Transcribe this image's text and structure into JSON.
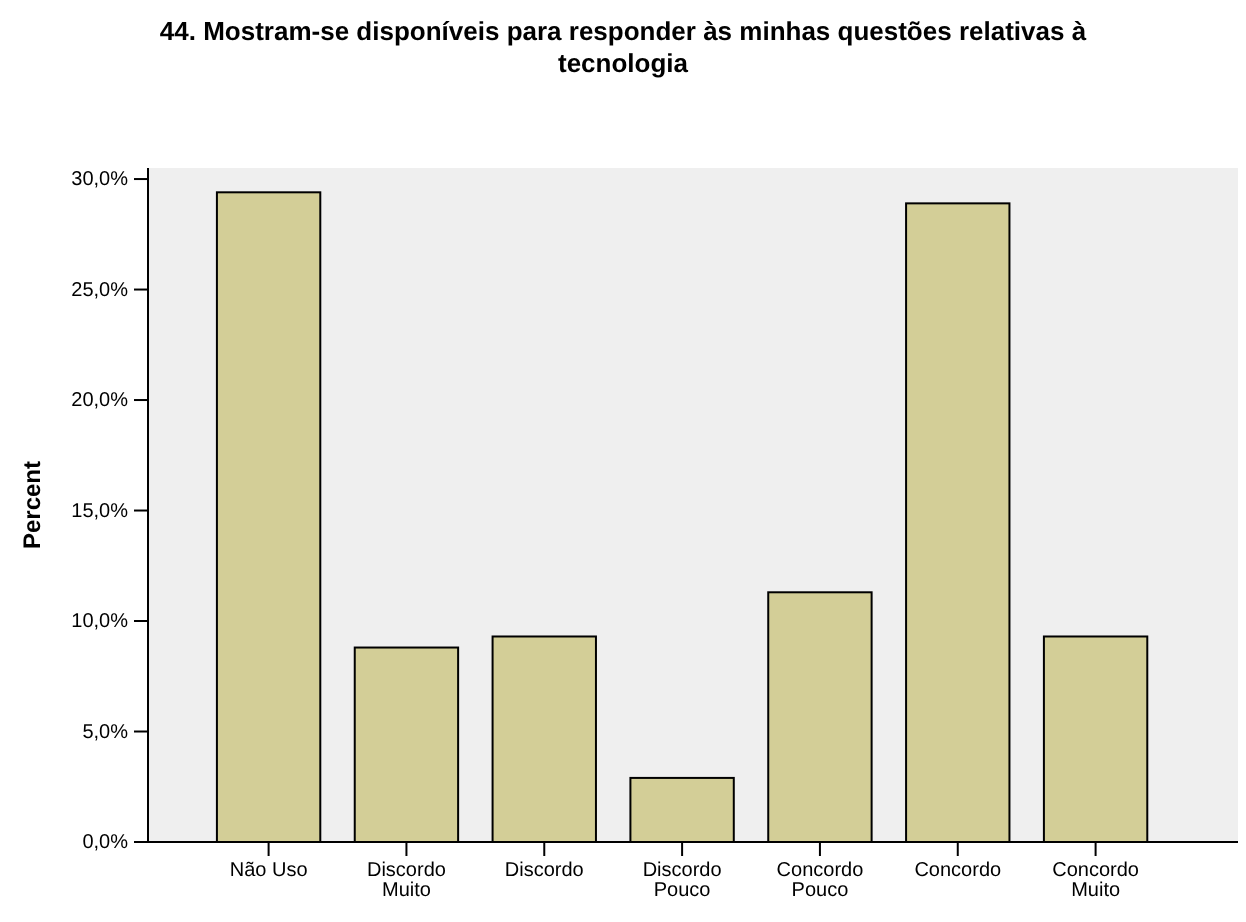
{
  "chart_data": {
    "type": "bar",
    "title": "44. Mostram-se disponíveis para responder às minhas questões relativas à tecnologia",
    "ylabel": "Percent",
    "categories": [
      "Não Uso",
      "Discordo Muito",
      "Discordo",
      "Discordo Pouco",
      "Concordo Pouco",
      "Concordo",
      "Concordo Muito"
    ],
    "values": [
      29.4,
      8.8,
      9.3,
      2.9,
      11.3,
      28.9,
      9.3
    ],
    "color": "#d3ce97",
    "ylim": [
      0,
      30.5
    ],
    "yticks": [
      {
        "value": 0,
        "label": "0,0%"
      },
      {
        "value": 5,
        "label": "5,0%"
      },
      {
        "value": 10,
        "label": "10,0%"
      },
      {
        "value": 15,
        "label": "15,0%"
      },
      {
        "value": 20,
        "label": "20,0%"
      },
      {
        "value": 25,
        "label": "25,0%"
      },
      {
        "value": 30,
        "label": "30,0%"
      }
    ],
    "grid": false
  }
}
